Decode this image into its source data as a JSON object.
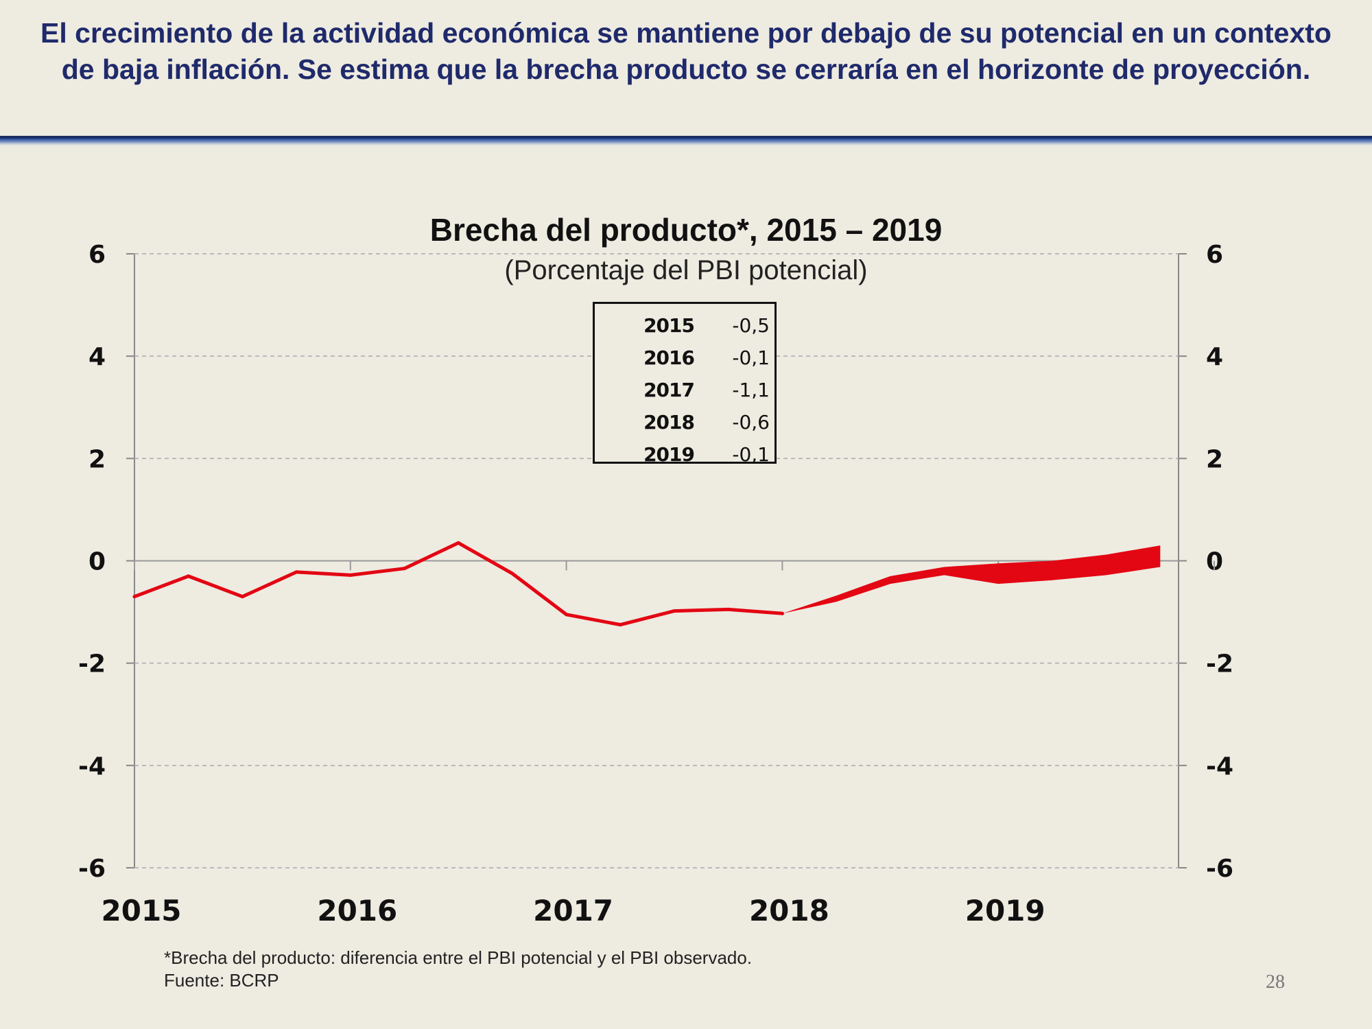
{
  "slide": {
    "headline": "El crecimiento de la actividad económica se mantiene por debajo de su potencial en un contexto de baja inflación. Se estima que la brecha producto se cerraría en el horizonte de proyección.",
    "footnote_line1": "*Brecha del producto: diferencia entre el PBI potencial y el PBI observado.",
    "footnote_line2": "Fuente: BCRP",
    "page_number": "28",
    "colors": {
      "headline": "#1f2a6b",
      "rule": "#1f3d7a",
      "series": "#e30613",
      "background": "#eeebe1"
    }
  },
  "chart_data": {
    "type": "line",
    "title": "Brecha del producto*, 2015 – 2019",
    "subtitle": "(Porcentaje del PBI potencial)",
    "xlabel": "",
    "ylabel": "",
    "ylim": [
      -6,
      6
    ],
    "xlim": [
      0,
      20
    ],
    "yticks": [
      6,
      4,
      2,
      0,
      -2,
      -4,
      -6
    ],
    "yticks_right": [
      6,
      4,
      2,
      0,
      -2,
      -4,
      -6
    ],
    "x_tick_labels": [
      {
        "label": "2015",
        "x": 0
      },
      {
        "label": "2016",
        "x": 4
      },
      {
        "label": "2017",
        "x": 8
      },
      {
        "label": "2018",
        "x": 12
      },
      {
        "label": "2019",
        "x": 16
      }
    ],
    "grid": "horizontal-dashed",
    "series": [
      {
        "type": "line",
        "color": "#e30613",
        "points": [
          {
            "x": 0,
            "y": -0.7
          },
          {
            "x": 1,
            "y": -0.3
          },
          {
            "x": 2,
            "y": -0.7
          },
          {
            "x": 3,
            "y": -0.22
          },
          {
            "x": 4,
            "y": -0.28
          },
          {
            "x": 5,
            "y": -0.15
          },
          {
            "x": 6,
            "y": 0.35
          },
          {
            "x": 7,
            "y": -0.25
          },
          {
            "x": 8,
            "y": -1.05
          },
          {
            "x": 9,
            "y": -1.25
          },
          {
            "x": 10,
            "y": -0.98
          },
          {
            "x": 11,
            "y": -0.95
          },
          {
            "x": 12,
            "y": -1.03
          }
        ]
      },
      {
        "type": "band",
        "color": "#e30613",
        "points": [
          {
            "x": 12,
            "low": -1.03,
            "high": -1.03
          },
          {
            "x": 13,
            "low": -0.8,
            "high": -0.68
          },
          {
            "x": 14,
            "low": -0.45,
            "high": -0.3
          },
          {
            "x": 15,
            "low": -0.28,
            "high": -0.12
          },
          {
            "x": 16,
            "low": -0.45,
            "high": -0.05
          },
          {
            "x": 17,
            "low": -0.38,
            "high": 0.0
          },
          {
            "x": 18,
            "low": -0.28,
            "high": 0.12
          },
          {
            "x": 19,
            "low": -0.12,
            "high": 0.3
          }
        ]
      }
    ],
    "summary_table": [
      {
        "year": "2015",
        "value": "-0,5"
      },
      {
        "year": "2016",
        "value": "-0,1"
      },
      {
        "year": "2017",
        "value": "-1,1"
      },
      {
        "year": "2018",
        "value": "-0,6"
      },
      {
        "year": "2019",
        "value": "-0,1"
      }
    ]
  }
}
